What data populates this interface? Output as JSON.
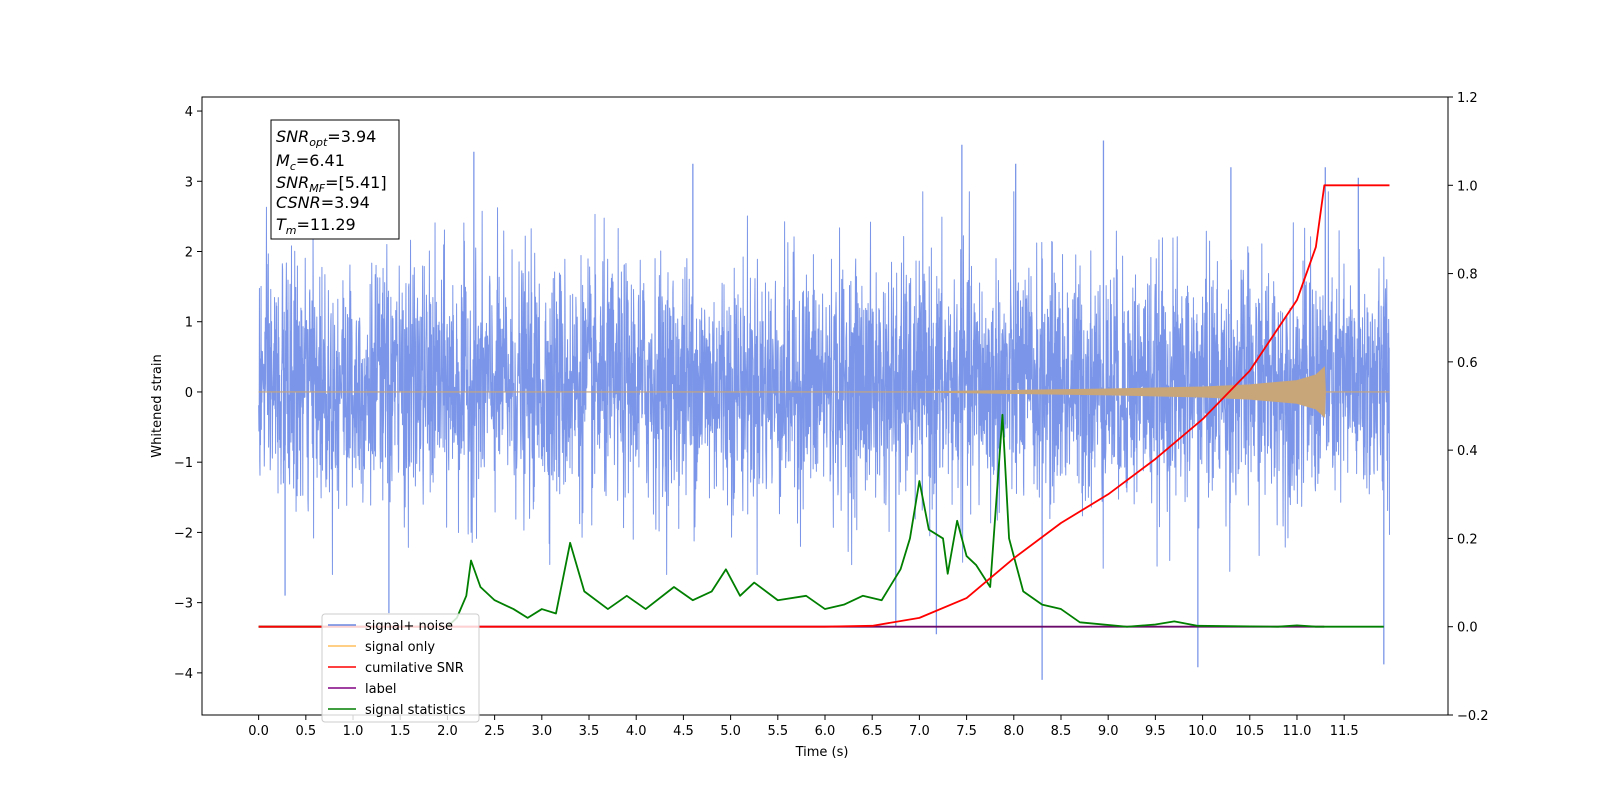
{
  "chart_data": {
    "type": "line",
    "title": "",
    "xlabel": "Time (s)",
    "ylabel": "Whitened strain",
    "xlim": [
      -0.6,
      12.6
    ],
    "ylim": [
      -4.6,
      4.2
    ],
    "y2lim": [
      -0.2,
      1.2
    ],
    "xticks": [
      "0.0",
      "0.5",
      "1.0",
      "1.5",
      "2.0",
      "2.5",
      "3.0",
      "3.5",
      "4.0",
      "4.5",
      "5.0",
      "5.5",
      "6.0",
      "6.5",
      "7.0",
      "7.5",
      "8.0",
      "8.5",
      "9.0",
      "9.5",
      "10.0",
      "10.5",
      "11.0",
      "11.5"
    ],
    "yticks": [
      "4",
      "3",
      "2",
      "1",
      "0",
      "−1",
      "−2",
      "−3",
      "−4"
    ],
    "y2ticks": [
      "1.2",
      "1.0",
      "0.8",
      "0.6",
      "0.4",
      "0.2",
      "0.0",
      "−0.2"
    ],
    "grid": false,
    "legend_position": "lower-left",
    "colors": {
      "noise": "#7b96e8",
      "signal": "#c9a57a",
      "cumulative": "#ff0000",
      "label": "#6a0a6a",
      "statistics": "#007f00"
    },
    "info_box": [
      {
        "base": "SNR",
        "sub": "opt",
        "value": "=3.94"
      },
      {
        "base": "M",
        "sub": "c",
        "value": "=6.41"
      },
      {
        "base": "SNR",
        "sub": "MF",
        "value": "=[5.41]"
      },
      {
        "base": "CSNR",
        "sub": "",
        "value": "=3.94"
      },
      {
        "base": "T",
        "sub": "m",
        "value": "=11.29"
      }
    ],
    "series": [
      {
        "name": "signal+ noise",
        "axis": "left",
        "x_range": [
          0.0,
          11.98
        ],
        "band_typical": [
          -1.8,
          2.0
        ],
        "peaks": [
          {
            "x": 2.28,
            "y": 3.42
          },
          {
            "x": 4.6,
            "y": 3.25
          },
          {
            "x": 7.45,
            "y": 3.52
          },
          {
            "x": 8.02,
            "y": 3.25
          },
          {
            "x": 8.95,
            "y": 3.58
          },
          {
            "x": 10.3,
            "y": 3.2
          },
          {
            "x": 11.3,
            "y": 3.2
          },
          {
            "x": 11.65,
            "y": 3.05
          }
        ],
        "troughs": [
          {
            "x": 0.28,
            "y": -2.9
          },
          {
            "x": 1.38,
            "y": -3.15
          },
          {
            "x": 6.75,
            "y": -3.35
          },
          {
            "x": 7.18,
            "y": -3.45
          },
          {
            "x": 8.3,
            "y": -4.1
          },
          {
            "x": 9.95,
            "y": -3.92
          },
          {
            "x": 11.92,
            "y": -3.88
          }
        ]
      },
      {
        "name": "signal only",
        "axis": "left",
        "envelope": [
          {
            "x": 0.0,
            "y": 0.0
          },
          {
            "x": 7.0,
            "y": 0.0
          },
          {
            "x": 7.5,
            "y": 0.01
          },
          {
            "x": 8.0,
            "y": 0.02
          },
          {
            "x": 9.0,
            "y": 0.04
          },
          {
            "x": 10.0,
            "y": 0.07
          },
          {
            "x": 10.5,
            "y": 0.1
          },
          {
            "x": 11.0,
            "y": 0.16
          },
          {
            "x": 11.2,
            "y": 0.24
          },
          {
            "x": 11.29,
            "y": 0.35
          },
          {
            "x": 11.3,
            "y": 0.0
          },
          {
            "x": 11.98,
            "y": 0.0
          }
        ]
      },
      {
        "name": "cumilative SNR",
        "axis": "right",
        "points": [
          {
            "x": 0.0,
            "y": 0.0
          },
          {
            "x": 6.0,
            "y": 0.0
          },
          {
            "x": 6.5,
            "y": 0.002
          },
          {
            "x": 7.0,
            "y": 0.02
          },
          {
            "x": 7.5,
            "y": 0.065
          },
          {
            "x": 8.0,
            "y": 0.155
          },
          {
            "x": 8.5,
            "y": 0.235
          },
          {
            "x": 9.0,
            "y": 0.3
          },
          {
            "x": 9.5,
            "y": 0.38
          },
          {
            "x": 10.0,
            "y": 0.47
          },
          {
            "x": 10.5,
            "y": 0.58
          },
          {
            "x": 11.0,
            "y": 0.74
          },
          {
            "x": 11.2,
            "y": 0.86
          },
          {
            "x": 11.29,
            "y": 1.0
          },
          {
            "x": 11.98,
            "y": 1.0
          }
        ]
      },
      {
        "name": "label",
        "axis": "right",
        "points": [
          {
            "x": 0.0,
            "y": 0.0
          },
          {
            "x": 11.29,
            "y": 0.0
          }
        ]
      },
      {
        "name": "signal statistics",
        "axis": "right",
        "points": [
          {
            "x": 0.0,
            "y": 0.0
          },
          {
            "x": 2.0,
            "y": 0.0
          },
          {
            "x": 2.1,
            "y": 0.02
          },
          {
            "x": 2.2,
            "y": 0.07
          },
          {
            "x": 2.25,
            "y": 0.15
          },
          {
            "x": 2.35,
            "y": 0.09
          },
          {
            "x": 2.5,
            "y": 0.06
          },
          {
            "x": 2.7,
            "y": 0.04
          },
          {
            "x": 2.85,
            "y": 0.02
          },
          {
            "x": 3.0,
            "y": 0.04
          },
          {
            "x": 3.15,
            "y": 0.03
          },
          {
            "x": 3.3,
            "y": 0.19
          },
          {
            "x": 3.45,
            "y": 0.08
          },
          {
            "x": 3.7,
            "y": 0.04
          },
          {
            "x": 3.9,
            "y": 0.07
          },
          {
            "x": 4.1,
            "y": 0.04
          },
          {
            "x": 4.4,
            "y": 0.09
          },
          {
            "x": 4.6,
            "y": 0.06
          },
          {
            "x": 4.8,
            "y": 0.08
          },
          {
            "x": 4.95,
            "y": 0.13
          },
          {
            "x": 5.1,
            "y": 0.07
          },
          {
            "x": 5.25,
            "y": 0.1
          },
          {
            "x": 5.5,
            "y": 0.06
          },
          {
            "x": 5.8,
            "y": 0.07
          },
          {
            "x": 6.0,
            "y": 0.04
          },
          {
            "x": 6.2,
            "y": 0.05
          },
          {
            "x": 6.4,
            "y": 0.07
          },
          {
            "x": 6.6,
            "y": 0.06
          },
          {
            "x": 6.8,
            "y": 0.13
          },
          {
            "x": 6.9,
            "y": 0.2
          },
          {
            "x": 7.0,
            "y": 0.33
          },
          {
            "x": 7.1,
            "y": 0.22
          },
          {
            "x": 7.25,
            "y": 0.2
          },
          {
            "x": 7.3,
            "y": 0.12
          },
          {
            "x": 7.4,
            "y": 0.24
          },
          {
            "x": 7.5,
            "y": 0.16
          },
          {
            "x": 7.6,
            "y": 0.14
          },
          {
            "x": 7.75,
            "y": 0.09
          },
          {
            "x": 7.88,
            "y": 0.48
          },
          {
            "x": 7.95,
            "y": 0.2
          },
          {
            "x": 8.1,
            "y": 0.08
          },
          {
            "x": 8.3,
            "y": 0.05
          },
          {
            "x": 8.5,
            "y": 0.04
          },
          {
            "x": 8.7,
            "y": 0.01
          },
          {
            "x": 9.2,
            "y": 0.0
          },
          {
            "x": 9.5,
            "y": 0.005
          },
          {
            "x": 9.7,
            "y": 0.012
          },
          {
            "x": 9.95,
            "y": 0.002
          },
          {
            "x": 10.8,
            "y": 0.0
          },
          {
            "x": 11.0,
            "y": 0.003
          },
          {
            "x": 11.2,
            "y": 0.0
          },
          {
            "x": 11.92,
            "y": 0.0
          }
        ]
      }
    ]
  },
  "legend": {
    "items": [
      {
        "label": "signal+ noise",
        "color": "#6b86e0"
      },
      {
        "label": "signal only",
        "color": "#ffbf5f"
      },
      {
        "label": "cumilative SNR",
        "color": "#ff0000"
      },
      {
        "label": "label",
        "color": "#800080"
      },
      {
        "label": "signal statistics",
        "color": "#007f00"
      }
    ]
  }
}
